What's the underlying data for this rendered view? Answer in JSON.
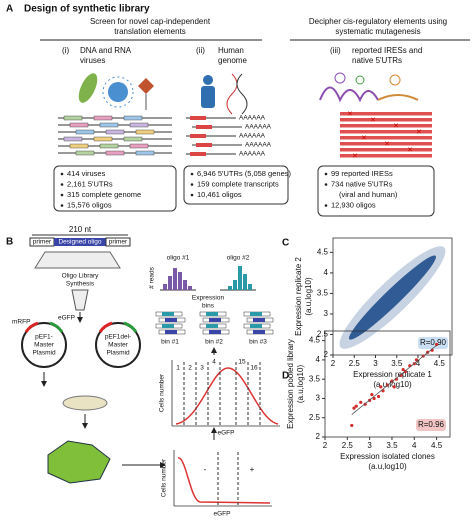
{
  "panel_a": {
    "label": "A",
    "title": "Design of synthetic library",
    "header_left": [
      "Screen for novel cap-independent",
      "translation elements"
    ],
    "header_right": [
      "Decipher cis-regulatory elements using",
      "systematic mutagenesis"
    ],
    "sources": [
      {
        "numeral": "(i)",
        "label": [
          "DNA and RNA",
          "viruses"
        ],
        "bullets": [
          "414 viruses",
          "2,161 5'UTRs",
          "315 complete genome",
          "15,576 oligos"
        ]
      },
      {
        "numeral": "(ii)",
        "label": [
          "Human",
          "genome"
        ],
        "bullets": [
          "6,946 5'UTRs (5,058 genes)",
          "159 complete transcripts",
          "10,461 oligos"
        ]
      },
      {
        "numeral": "(iii)",
        "label": [
          "reported IRESs and",
          "native 5'UTRs"
        ],
        "bullets": [
          "99 reported IRESs",
          "734 native 5'UTRs",
          "(viral and human)",
          "12,930 oligos"
        ]
      }
    ],
    "poly_a": "AAAAAA"
  },
  "panel_b": {
    "label": "B",
    "length": "210 nt",
    "oligo_parts": [
      "primer",
      "Designed oligo",
      "primer"
    ],
    "synthesis": [
      "Oligo Library",
      "Synthesis"
    ],
    "reporters": [
      "mRFP",
      "eGFP"
    ],
    "plasmids": [
      [
        "pEF1-",
        "Master",
        "Plasmid"
      ],
      [
        "pEF1del-",
        "Master",
        "Plasmid"
      ]
    ],
    "oligos": [
      "oligo #1",
      "oligo #2"
    ],
    "reads": "# reads",
    "bins_label": [
      "Expression",
      "bins"
    ],
    "bins": [
      "bin #1",
      "bin #2",
      "bin #3"
    ],
    "sorting": {
      "ylabel": "Cells number",
      "xlabel": "eGFP",
      "bin_numbers": [
        "1",
        "2",
        "3",
        "4",
        "15",
        "16"
      ]
    },
    "gating": {
      "ylabel": "Cells number",
      "xlabel": "eGFP",
      "gates": [
        "-",
        "+"
      ]
    }
  },
  "chart_data": [
    {
      "type": "scatter",
      "panel": "C",
      "xlabel": [
        "Expression replicate 1",
        "(a.u,log10)"
      ],
      "ylabel": [
        "Expression replicate 2",
        "(a.u,log10)"
      ],
      "xlim": [
        2,
        4.8
      ],
      "ylim": [
        2,
        4.85
      ],
      "xticks": [
        2,
        2.5,
        3,
        3.5,
        4,
        4.5
      ],
      "yticks": [
        2,
        2.5,
        3,
        3.5,
        4,
        4.5
      ],
      "color": "#1f4e8c",
      "annotation": "R=0.90",
      "annotation_color": "#c9def2"
    },
    {
      "type": "scatter",
      "panel": "D",
      "xlabel": [
        "Expression isolated clones",
        "(a.u,log10)"
      ],
      "ylabel": [
        "Expression pooled library",
        "(a.u,log10)"
      ],
      "xlim": [
        2,
        4.8
      ],
      "ylim": [
        2,
        4.75
      ],
      "xticks": [
        2,
        2.5,
        3,
        3.5,
        4,
        4.5
      ],
      "yticks": [
        2,
        2.5,
        3,
        3.5,
        4,
        4.5
      ],
      "x": [
        2.6,
        2.65,
        2.7,
        2.8,
        2.9,
        3.0,
        3.05,
        3.1,
        3.2,
        3.25,
        3.3,
        3.4,
        3.5,
        3.55,
        3.6,
        3.7,
        3.75,
        3.8,
        3.9,
        4.0,
        4.05,
        4.2,
        4.3,
        4.4,
        4.5
      ],
      "values": [
        2.3,
        2.75,
        2.8,
        2.9,
        2.85,
        2.95,
        3.1,
        3.0,
        3.05,
        3.3,
        3.2,
        3.35,
        3.45,
        3.3,
        3.5,
        3.6,
        3.75,
        3.7,
        3.85,
        3.9,
        4.0,
        4.1,
        4.2,
        4.25,
        4.4
      ],
      "color": "#d62a2a",
      "annotation": "R=0.96",
      "annotation_color": "#f2c4c4"
    }
  ]
}
